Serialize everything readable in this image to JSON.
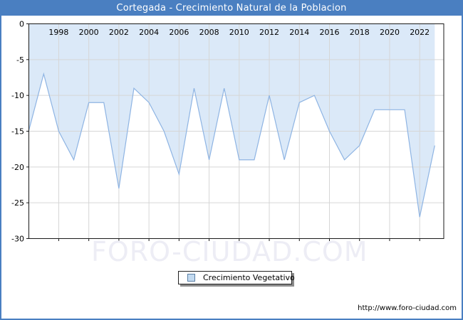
{
  "chart_data": {
    "type": "area",
    "title": "Cortegada - Crecimiento Natural de la Poblacion",
    "legend_label": "Crecimiento Vegetativo",
    "xlabel": "",
    "ylabel": "",
    "x": [
      1996,
      1997,
      1998,
      1999,
      2000,
      2001,
      2002,
      2003,
      2004,
      2005,
      2006,
      2007,
      2008,
      2009,
      2010,
      2011,
      2012,
      2013,
      2014,
      2015,
      2016,
      2017,
      2018,
      2019,
      2020,
      2021,
      2022,
      2023
    ],
    "values": [
      -15,
      -7,
      -15,
      -19,
      -11,
      -11,
      -23,
      -9,
      -11,
      -15,
      -21,
      -9,
      -19,
      -9,
      -19,
      -19,
      -10,
      -19,
      -11,
      -10,
      -15,
      -19,
      -17,
      -12,
      -12,
      -12,
      -27,
      -17
    ],
    "ylim": [
      -30,
      0
    ],
    "yticks": [
      0,
      -5,
      -10,
      -15,
      -20,
      -25,
      -30
    ],
    "xticks": [
      1998,
      2000,
      2002,
      2004,
      2006,
      2008,
      2010,
      2012,
      2014,
      2016,
      2018,
      2020,
      2022
    ],
    "grid": true,
    "legend_position": "bottom-center"
  },
  "watermark": {
    "text": "FORO-CIUDAD.COM"
  },
  "footer": {
    "url": "http://www.foro-ciudad.com"
  },
  "colors": {
    "frame_blue": "#4a7fc1",
    "title_text": "#ffffff",
    "area_fill": "#dbe9f8",
    "line": "#8eb4e3",
    "grid": "#d6d6d6",
    "axis": "#1a1a1a",
    "text": "#000000",
    "legend_marker_fill": "#c3daf0",
    "legend_marker_border": "#5a7fa5",
    "watermark": "#ededf5"
  }
}
